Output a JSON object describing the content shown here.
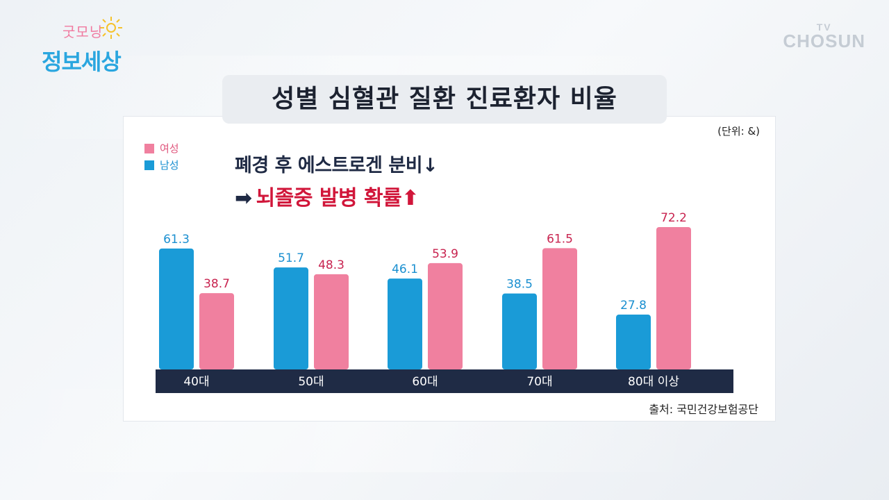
{
  "logo": {
    "line1": "굿모닝",
    "line2": "정보세상"
  },
  "brand": {
    "tv": "TV",
    "name": "CHOSUN"
  },
  "title": "성별 심혈관 질환 진료환자 비율",
  "unit": "(단위: &)",
  "annotation": {
    "line1": "폐경 후 에스트로겐 분비↓",
    "line2_arrow": "➡",
    "line2": "뇌졸중 발병 확률⬆"
  },
  "source": "출처: 국민건강보험공단",
  "colors": {
    "female": "#f0809f",
    "male": "#1a9bd7",
    "female_label": "#c8234f",
    "male_label": "#1a8fd0",
    "axis_bar": "#1f2b45"
  },
  "chart_data": {
    "type": "bar",
    "categories": [
      "40대",
      "50대",
      "60대",
      "70대",
      "80대 이상"
    ],
    "series": [
      {
        "name": "남성",
        "values": [
          61.3,
          51.7,
          46.1,
          38.5,
          27.8
        ]
      },
      {
        "name": "여성",
        "values": [
          38.7,
          48.3,
          53.9,
          61.5,
          72.2
        ]
      }
    ],
    "legend": [
      "여성",
      "남성"
    ],
    "title": "성별 심혈관 질환 진료환자 비율",
    "ylim": [
      0,
      80
    ]
  }
}
